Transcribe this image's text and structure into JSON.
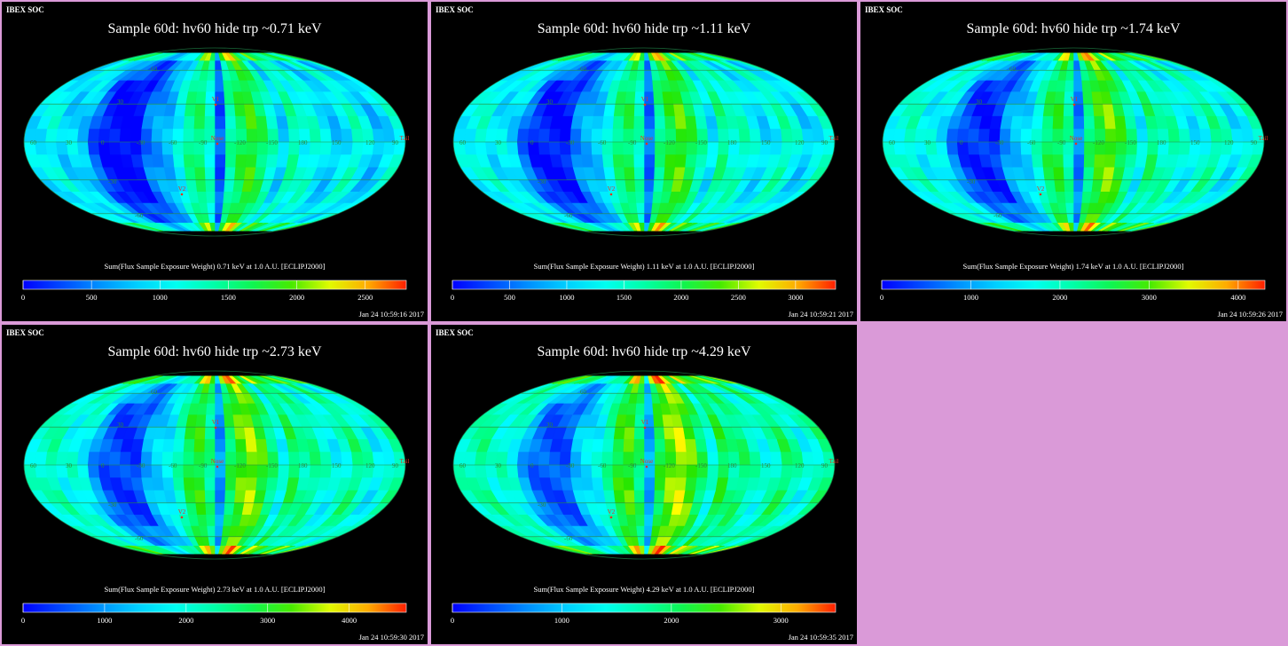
{
  "colors": {
    "background": "#da9ad8",
    "panel_bg": "#000000",
    "map_grid": "#2a8a3a",
    "marker": "#e83020"
  },
  "panels": [
    {
      "soc": "IBEX SOC",
      "title": "Sample 60d: hv60 hide trp ~0.71 keV",
      "caption": "Sum(Flux Sample Exposure Weight)  0.71 keV at 1.0 A.U. [ECLIPJ2000]",
      "timestamp": "Jan 24 10:59:16 2017",
      "colorbar_ticks": [
        "0",
        "500",
        "1000",
        "1500",
        "2000",
        "2500"
      ],
      "colorbar_max": 2800
    },
    {
      "soc": "IBEX SOC",
      "title": "Sample 60d: hv60 hide trp ~1.11 keV",
      "caption": "Sum(Flux Sample Exposure Weight)  1.11 keV at 1.0 A.U. [ECLIPJ2000]",
      "timestamp": "Jan 24 10:59:21 2017",
      "colorbar_ticks": [
        "0",
        "500",
        "1000",
        "1500",
        "2000",
        "2500",
        "3000"
      ],
      "colorbar_max": 3350
    },
    {
      "soc": "IBEX SOC",
      "title": "Sample 60d: hv60 hide trp ~1.74 keV",
      "caption": "Sum(Flux Sample Exposure Weight)  1.74 keV at 1.0 A.U. [ECLIPJ2000]",
      "timestamp": "Jan 24 10:59:26 2017",
      "colorbar_ticks": [
        "0",
        "1000",
        "2000",
        "3000",
        "4000"
      ],
      "colorbar_max": 4300
    },
    {
      "soc": "IBEX SOC",
      "title": "Sample 60d: hv60 hide trp ~2.73 keV",
      "caption": "Sum(Flux Sample Exposure Weight)  2.73 keV at 1.0 A.U. [ECLIPJ2000]",
      "timestamp": "Jan 24 10:59:30 2017",
      "colorbar_ticks": [
        "0",
        "1000",
        "2000",
        "3000",
        "4000"
      ],
      "colorbar_max": 4700
    },
    {
      "soc": "IBEX SOC",
      "title": "Sample 60d: hv60 hide trp ~4.29 keV",
      "caption": "Sum(Flux Sample Exposure Weight)  4.29 keV at 1.0 A.U. [ECLIPJ2000]",
      "timestamp": "Jan 24 10:59:35 2017",
      "colorbar_ticks": [
        "0",
        "1000",
        "2000",
        "3000"
      ],
      "colorbar_max": 3500
    }
  ],
  "map_labels": {
    "markers": [
      "V1",
      "Nose",
      "V2",
      "Tail"
    ],
    "longitudes": [
      "60",
      "30",
      "0",
      "-30",
      "-60",
      "-90",
      "-120",
      "-150",
      "180",
      "150",
      "120",
      "90"
    ],
    "latitudes": [
      "30",
      "-30",
      "60",
      "-60"
    ]
  },
  "chart_data": [
    {
      "type": "heatmap",
      "title": "Sample 60d: hv60 hide trp ~0.71 keV",
      "projection": "mollweide",
      "colorbar_label": "Sum(Flux Sample Exposure Weight)  0.71 keV at 1.0 A.U. [ECLIPJ2000]",
      "colorbar_range": [
        0,
        2800
      ],
      "colorbar_ticks": [
        0,
        500,
        1000,
        1500,
        2000,
        2500
      ]
    },
    {
      "type": "heatmap",
      "title": "Sample 60d: hv60 hide trp ~1.11 keV",
      "projection": "mollweide",
      "colorbar_label": "Sum(Flux Sample Exposure Weight)  1.11 keV at 1.0 A.U. [ECLIPJ2000]",
      "colorbar_range": [
        0,
        3350
      ],
      "colorbar_ticks": [
        0,
        500,
        1000,
        1500,
        2000,
        2500,
        3000
      ]
    },
    {
      "type": "heatmap",
      "title": "Sample 60d: hv60 hide trp ~1.74 keV",
      "projection": "mollweide",
      "colorbar_label": "Sum(Flux Sample Exposure Weight)  1.74 keV at 1.0 A.U. [ECLIPJ2000]",
      "colorbar_range": [
        0,
        4300
      ],
      "colorbar_ticks": [
        0,
        1000,
        2000,
        3000,
        4000
      ]
    },
    {
      "type": "heatmap",
      "title": "Sample 60d: hv60 hide trp ~2.73 keV",
      "projection": "mollweide",
      "colorbar_label": "Sum(Flux Sample Exposure Weight)  2.73 keV at 1.0 A.U. [ECLIPJ2000]",
      "colorbar_range": [
        0,
        4700
      ],
      "colorbar_ticks": [
        0,
        1000,
        2000,
        3000,
        4000
      ]
    },
    {
      "type": "heatmap",
      "title": "Sample 60d: hv60 hide trp ~4.29 keV",
      "projection": "mollweide",
      "colorbar_label": "Sum(Flux Sample Exposure Weight)  4.29 keV at 1.0 A.U. [ECLIPJ2000]",
      "colorbar_range": [
        0,
        3500
      ],
      "colorbar_ticks": [
        0,
        1000,
        2000,
        3000
      ]
    }
  ]
}
